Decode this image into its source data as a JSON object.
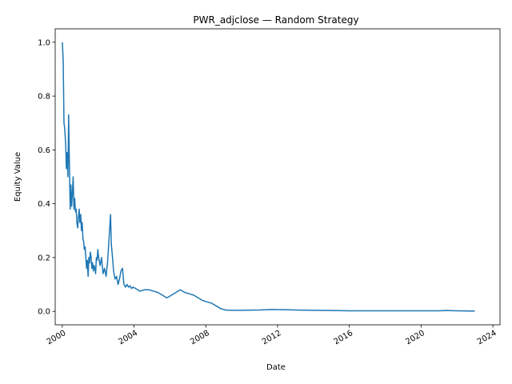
{
  "chart_data": {
    "type": "line",
    "title": "PWR_adjclose — Random Strategy",
    "xlabel": "Date",
    "ylabel": "Equity Value",
    "xlim": [
      "1999-08-10",
      "2024-05-25"
    ],
    "ylim": [
      -0.05,
      1.05
    ],
    "xticks": [
      "2000",
      "2004",
      "2008",
      "2012",
      "2016",
      "2020",
      "2024"
    ],
    "yticks": [
      "0.0",
      "0.2",
      "0.4",
      "0.6",
      "0.8",
      "1.0"
    ],
    "grid": false,
    "legend": "none",
    "series_color": "#1f77b4",
    "series": [
      {
        "x": [
          "2000-01-03",
          "2000-01-20",
          "2000-02-05",
          "2000-02-20",
          "2000-03-10",
          "2000-03-25",
          "2000-04-10",
          "2000-04-25",
          "2000-05-10",
          "2000-05-25",
          "2000-06-10",
          "2000-06-25",
          "2000-07-10",
          "2000-07-25",
          "2000-08-10",
          "2000-08-25",
          "2000-09-10",
          "2000-09-25",
          "2000-10-10",
          "2000-10-25",
          "2000-11-10",
          "2000-11-25",
          "2000-12-10",
          "2000-12-25",
          "2001-01-10",
          "2001-01-25",
          "2001-02-10",
          "2001-02-25",
          "2001-03-10",
          "2001-03-25",
          "2001-04-10",
          "2001-04-25",
          "2001-05-10",
          "2001-05-25",
          "2001-06-10",
          "2001-06-25",
          "2001-07-10",
          "2001-07-25",
          "2001-08-10",
          "2001-08-25",
          "2001-09-10",
          "2001-09-25",
          "2001-10-10",
          "2001-10-25",
          "2001-11-10",
          "2001-11-25",
          "2001-12-10",
          "2001-12-25",
          "2002-01-10",
          "2002-02-10",
          "2002-03-10",
          "2002-04-10",
          "2002-05-10",
          "2002-06-10",
          "2002-07-10",
          "2002-08-10",
          "2002-09-10",
          "2002-09-25",
          "2002-10-10",
          "2002-10-25",
          "2002-11-10",
          "2002-12-10",
          "2003-01-10",
          "2003-02-10",
          "2003-03-10",
          "2003-04-10",
          "2003-05-10",
          "2003-06-10",
          "2003-07-10",
          "2003-08-10",
          "2003-09-10",
          "2003-10-10",
          "2003-11-10",
          "2003-12-10",
          "2004-02-01",
          "2004-05-01",
          "2004-08-01",
          "2004-11-01",
          "2005-02-01",
          "2005-05-01",
          "2005-08-01",
          "2005-11-01",
          "2006-02-01",
          "2006-05-01",
          "2006-08-01",
          "2006-11-01",
          "2007-02-01",
          "2007-05-01",
          "2007-08-01",
          "2007-11-01",
          "2008-02-01",
          "2008-05-01",
          "2008-08-01",
          "2008-11-01",
          "2009-02-01",
          "2009-06-01",
          "2010-01-01",
          "2011-01-01",
          "2011-09-01",
          "2012-06-01",
          "2013-01-01",
          "2014-01-01",
          "2015-01-01",
          "2016-01-01",
          "2017-01-01",
          "2018-01-01",
          "2019-01-01",
          "2020-01-01",
          "2021-01-01",
          "2021-06-01",
          "2022-01-01",
          "2022-12-30"
        ],
        "values": [
          1.0,
          0.93,
          0.7,
          0.68,
          0.62,
          0.53,
          0.59,
          0.5,
          0.73,
          0.55,
          0.38,
          0.47,
          0.39,
          0.44,
          0.5,
          0.38,
          0.42,
          0.37,
          0.38,
          0.33,
          0.31,
          0.35,
          0.38,
          0.33,
          0.36,
          0.3,
          0.33,
          0.27,
          0.26,
          0.23,
          0.24,
          0.2,
          0.16,
          0.19,
          0.13,
          0.2,
          0.18,
          0.22,
          0.2,
          0.16,
          0.18,
          0.15,
          0.17,
          0.16,
          0.14,
          0.2,
          0.19,
          0.23,
          0.2,
          0.17,
          0.2,
          0.14,
          0.16,
          0.13,
          0.18,
          0.27,
          0.36,
          0.25,
          0.22,
          0.19,
          0.15,
          0.12,
          0.13,
          0.1,
          0.12,
          0.15,
          0.16,
          0.1,
          0.09,
          0.1,
          0.09,
          0.095,
          0.085,
          0.09,
          0.085,
          0.075,
          0.08,
          0.08,
          0.075,
          0.07,
          0.06,
          0.05,
          0.06,
          0.07,
          0.08,
          0.07,
          0.065,
          0.06,
          0.05,
          0.04,
          0.035,
          0.03,
          0.02,
          0.01,
          0.005,
          0.004,
          0.004,
          0.005,
          0.007,
          0.006,
          0.005,
          0.004,
          0.003,
          0.002,
          0.002,
          0.002,
          0.002,
          0.002,
          0.002,
          0.003,
          0.002,
          0.001
        ]
      }
    ]
  }
}
